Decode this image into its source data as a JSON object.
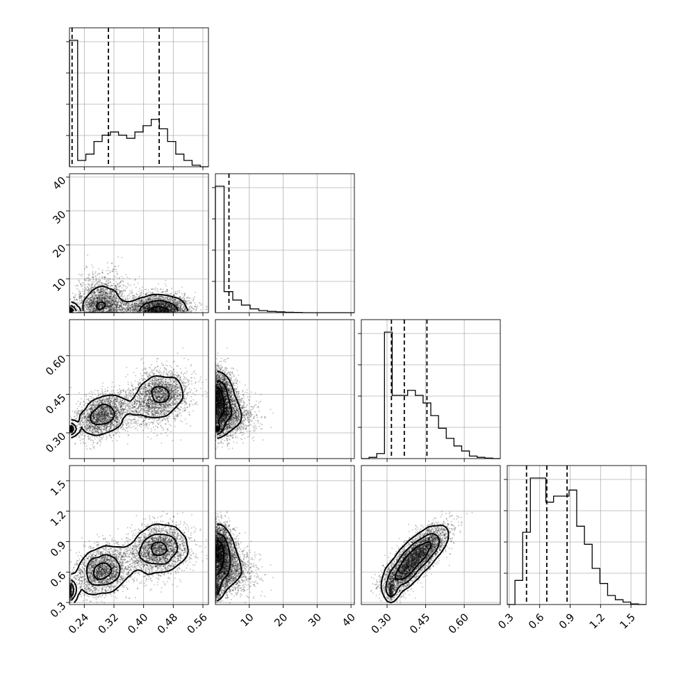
{
  "chart_data": {
    "type": "corner",
    "parameters": [
      {
        "range": [
          0.2,
          0.575
        ],
        "ticks": [
          0.24,
          0.32,
          0.4,
          0.48,
          0.56
        ],
        "tick_labels": [
          "0.24",
          "0.32",
          "0.40",
          "0.48",
          "0.56"
        ],
        "quantiles": [
          0.207,
          0.305,
          0.442
        ]
      },
      {
        "range": [
          0,
          41
        ],
        "ticks": [
          10,
          20,
          30,
          40
        ],
        "tick_labels": [
          "10",
          "20",
          "30",
          "40"
        ],
        "quantiles": [
          4.0
        ]
      },
      {
        "range": [
          0.2,
          0.74
        ],
        "ticks": [
          0.3,
          0.45,
          0.6
        ],
        "tick_labels": [
          "0.30",
          "0.45",
          "0.60"
        ],
        "quantiles": [
          0.317,
          0.367,
          0.455
        ]
      },
      {
        "range": [
          0.28,
          1.65
        ],
        "ticks": [
          0.3,
          0.6,
          0.9,
          1.2,
          1.5
        ],
        "tick_labels": [
          "0.3",
          "0.6",
          "0.9",
          "1.2",
          "1.5"
        ],
        "quantiles": [
          0.47,
          0.67,
          0.87
        ]
      }
    ],
    "histograms": [
      {
        "param": 0,
        "counts": [
          40,
          2,
          4,
          8,
          10,
          11,
          10,
          9,
          11,
          13,
          15,
          12,
          8,
          4,
          2,
          0.5,
          0
        ]
      },
      {
        "param": 1,
        "counts": [
          30,
          5,
          3,
          1.8,
          0.9,
          0.5,
          0.3,
          0.2,
          0.1,
          0.05,
          0,
          0,
          0,
          0,
          0,
          0
        ]
      },
      {
        "param": 2,
        "counts": [
          0,
          0.5,
          2,
          50,
          25,
          25,
          27,
          25,
          22,
          17,
          12,
          8,
          5,
          3,
          1,
          0.5,
          0.2,
          0
        ]
      },
      {
        "param": 3,
        "counts": [
          0,
          4,
          12,
          21,
          21,
          17,
          18,
          18,
          19,
          13,
          10,
          6,
          3.5,
          1.5,
          0.8,
          0.4,
          0.1,
          0
        ]
      }
    ],
    "grid": true,
    "style": "scatter points with density contours in lower panels, 1-D histograms with dashed quantile lines on diagonal"
  }
}
